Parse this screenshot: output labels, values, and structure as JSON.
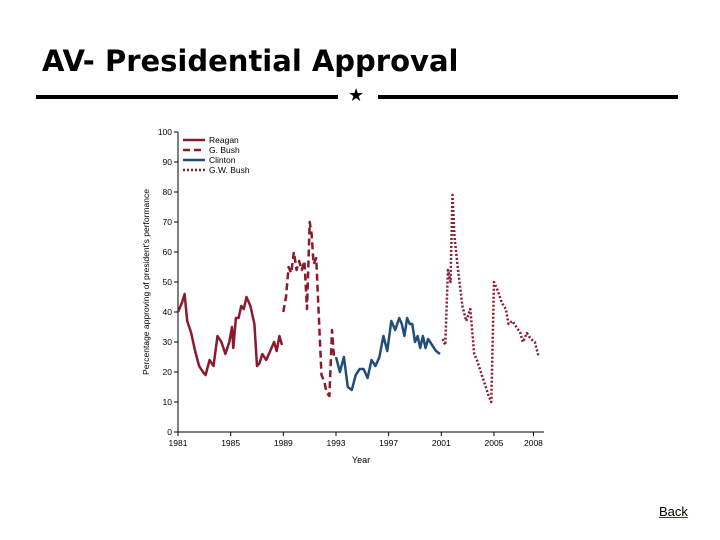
{
  "slide": {
    "title": "AV- Presidential Approval",
    "divider_icon": "star-icon",
    "back_label": "Back"
  },
  "colors": {
    "reagan": "#8b1a2e",
    "gbush": "#8b1a2e",
    "clinton": "#1f4e79",
    "gwbush": "#8b1a2e",
    "link_underline": "#c0001a"
  },
  "chart_data": {
    "type": "line",
    "title": "",
    "xlabel": "Year",
    "ylabel": "Percentage approving of president's performance",
    "xlim": [
      1981,
      2008.8
    ],
    "ylim": [
      0,
      100
    ],
    "x_ticks": [
      1981,
      1985,
      1989,
      1993,
      1997,
      2001,
      2005,
      2008
    ],
    "y_ticks": [
      0,
      10,
      20,
      30,
      40,
      50,
      60,
      70,
      80,
      90,
      100
    ],
    "legend_position": "top-left",
    "series": [
      {
        "name": "Reagan",
        "style": "solid",
        "color_key": "reagan",
        "x": [
          1981.0,
          1981.3,
          1981.5,
          1981.7,
          1982.0,
          1982.3,
          1982.6,
          1982.9,
          1983.1,
          1983.4,
          1983.7,
          1984.0,
          1984.3,
          1984.6,
          1984.9,
          1985.1,
          1985.2,
          1985.4,
          1985.6,
          1985.8,
          1986.0,
          1986.2,
          1986.5,
          1986.8,
          1987.0,
          1987.2,
          1987.4,
          1987.7,
          1988.0,
          1988.3,
          1988.5,
          1988.7,
          1988.9
        ],
        "values": [
          40,
          43,
          46,
          37,
          33,
          27,
          22,
          20,
          19,
          24,
          22,
          32,
          30,
          26,
          30,
          35,
          28,
          38,
          38,
          42,
          41,
          45,
          42,
          36,
          22,
          23,
          26,
          24,
          27,
          30,
          27,
          32,
          29
        ]
      },
      {
        "name": "G. Bush",
        "style": "dashed",
        "color_key": "gbush",
        "x": [
          1989.0,
          1989.2,
          1989.4,
          1989.6,
          1989.8,
          1990.0,
          1990.2,
          1990.4,
          1990.6,
          1990.8,
          1991.0,
          1991.15,
          1991.3,
          1991.5,
          1991.7,
          1991.9,
          1992.1,
          1992.3,
          1992.5,
          1992.7,
          1992.85
        ],
        "values": [
          40,
          45,
          55,
          53,
          60,
          54,
          57,
          54,
          57,
          41,
          70,
          66,
          56,
          58,
          38,
          19,
          17,
          13,
          12,
          34,
          25
        ]
      },
      {
        "name": "Clinton",
        "style": "solid",
        "color_key": "clinton",
        "x": [
          1993.0,
          1993.3,
          1993.6,
          1993.9,
          1994.2,
          1994.5,
          1994.8,
          1995.1,
          1995.4,
          1995.7,
          1996.0,
          1996.3,
          1996.6,
          1996.9,
          1997.2,
          1997.5,
          1997.8,
          1998.0,
          1998.2,
          1998.4,
          1998.6,
          1998.8,
          1999.0,
          1999.2,
          1999.4,
          1999.6,
          1999.8,
          2000.0,
          2000.3,
          2000.6,
          2000.9
        ],
        "values": [
          25,
          20,
          25,
          15,
          14,
          19,
          21,
          21,
          18,
          24,
          22,
          25,
          32,
          27,
          37,
          34,
          38,
          36,
          32,
          38,
          36,
          36,
          30,
          32,
          28,
          32,
          28,
          31,
          29,
          27,
          26
        ]
      },
      {
        "name": "G.W. Bush",
        "style": "dotted",
        "color_key": "gwbush",
        "x": [
          2001.1,
          2001.3,
          2001.5,
          2001.7,
          2001.85,
          2002.0,
          2002.3,
          2002.6,
          2002.9,
          2003.2,
          2003.5,
          2003.7,
          2004.0,
          2004.3,
          2004.6,
          2004.8,
          2005.0,
          2005.3,
          2005.6,
          2005.9,
          2006.1,
          2006.4,
          2006.7,
          2007.0,
          2007.2,
          2007.5,
          2007.8,
          2008.1,
          2008.4
        ],
        "values": [
          31,
          29,
          54,
          50,
          79,
          65,
          53,
          42,
          37,
          41,
          26,
          24,
          20,
          16,
          12,
          10,
          50,
          47,
          43,
          41,
          36,
          37,
          35,
          33,
          30,
          33,
          31,
          30,
          25
        ]
      }
    ]
  }
}
